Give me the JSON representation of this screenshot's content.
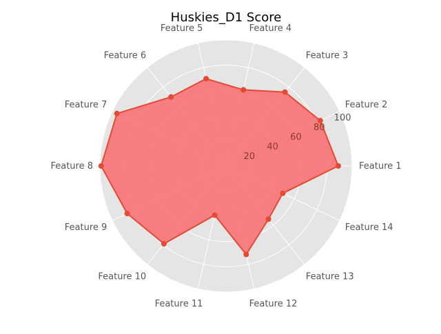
{
  "chart_data": {
    "type": "radar",
    "title": "Huskies_D1 Score",
    "categories": [
      "Feature 1",
      "Feature 2",
      "Feature 3",
      "Feature 4",
      "Feature 5",
      "Feature 6",
      "Feature 7",
      "Feature 8",
      "Feature 9",
      "Feature 10",
      "Feature 11",
      "Feature 12",
      "Feature 13",
      "Feature 14"
    ],
    "series": [
      {
        "values": [
          89,
          83,
          75,
          62,
          71,
          70,
          96,
          99,
          87,
          79,
          40,
          72,
          54,
          50
        ]
      }
    ],
    "r_ticks": [
      20,
      40,
      60,
      80,
      100
    ],
    "rlim": [
      0,
      100
    ],
    "grid": true,
    "colors": {
      "background": "#e5e5e5",
      "grid": "#ffffff",
      "series_line": "#e24a33",
      "series_fill": "#f7787a",
      "tick_text": "#555555",
      "rtick_text": "#8b3a2e",
      "title_text": "#000000"
    }
  }
}
